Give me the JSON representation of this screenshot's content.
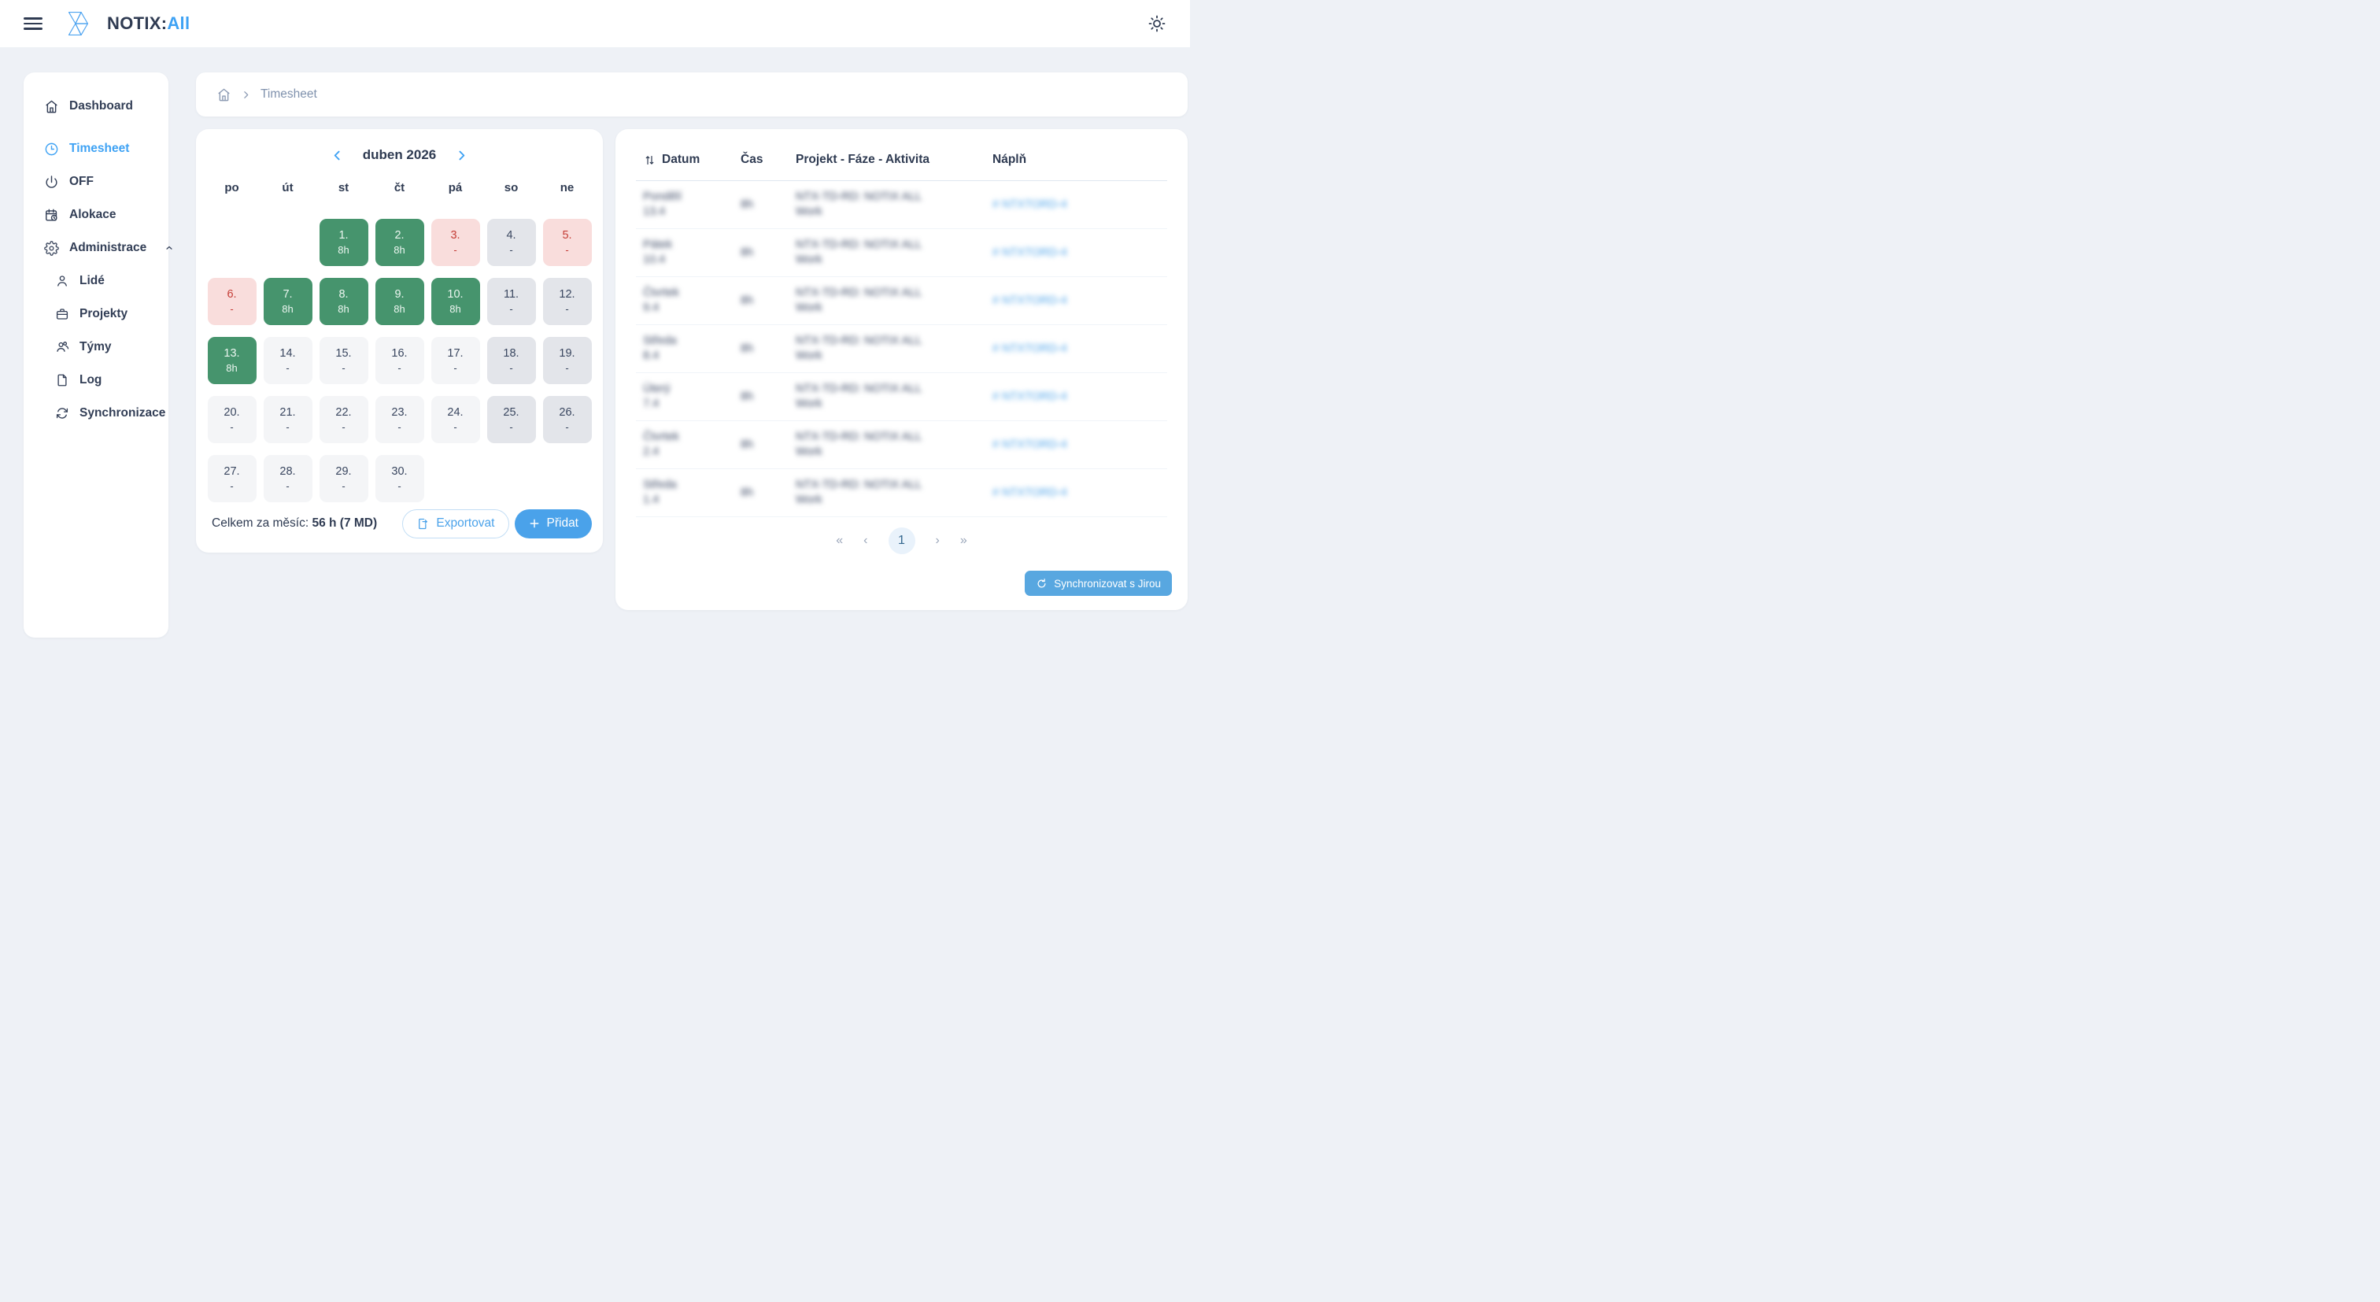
{
  "header": {
    "title_primary": "NOTIX:",
    "title_accent": "All"
  },
  "sidebar": {
    "items": [
      {
        "label": "Dashboard"
      },
      {
        "label": "Timesheet",
        "active": true
      },
      {
        "label": "OFF"
      },
      {
        "label": "Alokace"
      },
      {
        "label": "Administrace",
        "expanded": true
      },
      {
        "label": "Lidé",
        "sub": true
      },
      {
        "label": "Projekty",
        "sub": true
      },
      {
        "label": "Týmy",
        "sub": true
      },
      {
        "label": "Log",
        "sub": true
      },
      {
        "label": "Synchronizace",
        "sub": true
      }
    ]
  },
  "breadcrumb": {
    "page": "Timesheet"
  },
  "calendar": {
    "month_label": "duben 2026",
    "weekdays": [
      "po",
      "út",
      "st",
      "čt",
      "pá",
      "so",
      "ne"
    ],
    "cells": [
      {
        "type": "empty"
      },
      {
        "type": "empty"
      },
      {
        "day": "1.",
        "value": "8h",
        "type": "green"
      },
      {
        "day": "2.",
        "value": "8h",
        "type": "green"
      },
      {
        "day": "3.",
        "value": "-",
        "type": "pink"
      },
      {
        "day": "4.",
        "value": "-",
        "type": "gray"
      },
      {
        "day": "5.",
        "value": "-",
        "type": "pink"
      },
      {
        "day": "6.",
        "value": "-",
        "type": "pink"
      },
      {
        "day": "7.",
        "value": "8h",
        "type": "green"
      },
      {
        "day": "8.",
        "value": "8h",
        "type": "green"
      },
      {
        "day": "9.",
        "value": "8h",
        "type": "green"
      },
      {
        "day": "10.",
        "value": "8h",
        "type": "green"
      },
      {
        "day": "11.",
        "value": "-",
        "type": "gray"
      },
      {
        "day": "12.",
        "value": "-",
        "type": "gray"
      },
      {
        "day": "13.",
        "value": "8h",
        "type": "green"
      },
      {
        "day": "14.",
        "value": "-",
        "type": "light"
      },
      {
        "day": "15.",
        "value": "-",
        "type": "light"
      },
      {
        "day": "16.",
        "value": "-",
        "type": "light"
      },
      {
        "day": "17.",
        "value": "-",
        "type": "light"
      },
      {
        "day": "18.",
        "value": "-",
        "type": "gray"
      },
      {
        "day": "19.",
        "value": "-",
        "type": "gray"
      },
      {
        "day": "20.",
        "value": "-",
        "type": "light"
      },
      {
        "day": "21.",
        "value": "-",
        "type": "light"
      },
      {
        "day": "22.",
        "value": "-",
        "type": "light"
      },
      {
        "day": "23.",
        "value": "-",
        "type": "light"
      },
      {
        "day": "24.",
        "value": "-",
        "type": "light"
      },
      {
        "day": "25.",
        "value": "-",
        "type": "gray"
      },
      {
        "day": "26.",
        "value": "-",
        "type": "gray"
      },
      {
        "day": "27.",
        "value": "-",
        "type": "light"
      },
      {
        "day": "28.",
        "value": "-",
        "type": "light"
      },
      {
        "day": "29.",
        "value": "-",
        "type": "light"
      },
      {
        "day": "30.",
        "value": "-",
        "type": "light"
      },
      {
        "type": "empty"
      },
      {
        "type": "empty"
      },
      {
        "type": "empty"
      }
    ],
    "total_label": "Celkem za měsíc:",
    "total_value": "56 h (7 MD)",
    "export_label": "Exportovat",
    "add_label": "Přidat"
  },
  "table": {
    "columns": [
      "Datum",
      "Čas",
      "Projekt - Fáze - Aktivita",
      "Náplň"
    ],
    "rows": [
      {
        "day": "Pondělí",
        "date": "13.4",
        "hours": "8h",
        "project_line1": "NTX-TD-RD: NOTIX ALL",
        "project_line2": "Work",
        "link": "# NTXTORD-4"
      },
      {
        "day": "Pátek",
        "date": "10.4",
        "hours": "8h",
        "project_line1": "NTX-TD-RD: NOTIX ALL",
        "project_line2": "Work",
        "link": "# NTXTORD-4"
      },
      {
        "day": "Čtvrtek",
        "date": "9.4",
        "hours": "8h",
        "project_line1": "NTX-TD-RD: NOTIX ALL",
        "project_line2": "Work",
        "link": "# NTXTORD-4"
      },
      {
        "day": "Středa",
        "date": "8.4",
        "hours": "8h",
        "project_line1": "NTX-TD-RD: NOTIX ALL",
        "project_line2": "Work",
        "link": "# NTXTORD-4"
      },
      {
        "day": "Úterý",
        "date": "7.4",
        "hours": "8h",
        "project_line1": "NTX-TD-RD: NOTIX ALL",
        "project_line2": "Work",
        "link": "# NTXTORD-4"
      },
      {
        "day": "Čtvrtek",
        "date": "2.4",
        "hours": "8h",
        "project_line1": "NTX-TD-RD: NOTIX ALL",
        "project_line2": "Work",
        "link": "# NTXTORD-4"
      },
      {
        "day": "Středa",
        "date": "1.4",
        "hours": "8h",
        "project_line1": "NTX-TD-RD: NOTIX ALL",
        "project_line2": "Work",
        "link": "# NTXTORD-4"
      }
    ],
    "pagination": {
      "first": "«",
      "prev": "‹",
      "page": "1",
      "next": "›",
      "last": "»"
    },
    "sync_label": "Synchronizovat s Jirou"
  },
  "colors": {
    "accent_blue": "#3ea2f4",
    "button_blue": "#4aa2ea",
    "worked_green": "#46946d",
    "holiday_pink": "#f9dddc",
    "holiday_red": "#c43d36",
    "weekend_gray": "#e3e5ea",
    "empty_day_gray": "#f4f5f7",
    "page_background": "#eef1f6",
    "navy_text": "#2f3b52"
  }
}
